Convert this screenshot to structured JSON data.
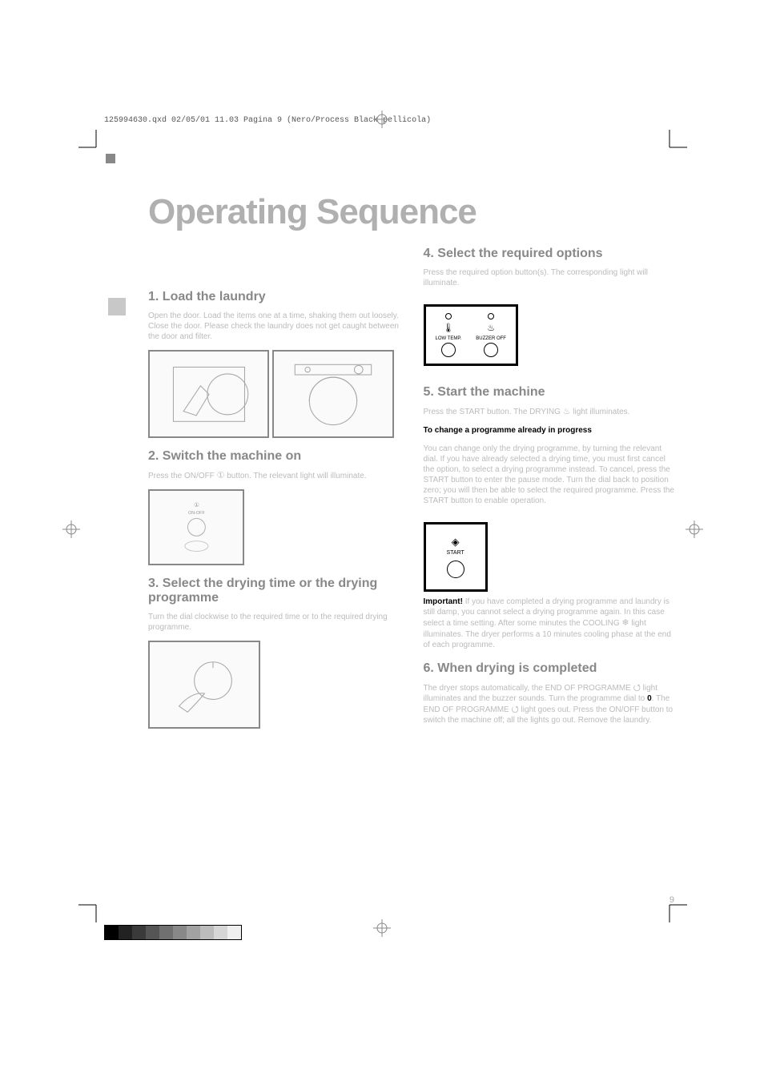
{
  "meta": {
    "header_line": "125994630.qxd  02/05/01  11.03  Pagina  9    (Nero/Process Black pellicola)"
  },
  "title": "Operating Sequence",
  "left": {
    "step1": {
      "heading": "1. Load the laundry",
      "body": "Open the door.\nLoad the items one at a time, shaking them out loosely.\nClose the door. Please check the laundry does not get caught between the door and filter.",
      "img1_ref": "P1108",
      "img2_ref": "P1189"
    },
    "step2": {
      "heading": "2. Switch the machine on",
      "body_prefix": "Press the ON/OFF ",
      "body_suffix": " button. The relevant light will illuminate.",
      "panel_label": "ON-OFF",
      "img_ref": "T0001S"
    },
    "step3": {
      "heading": "3. Select the drying time or the drying programme",
      "body": "Turn the dial clockwise to the required time or to the required drying programme.",
      "img_ref": "M0047S"
    }
  },
  "right": {
    "step4": {
      "heading": "4. Select the required options",
      "body": "Press the required option button(s). The corresponding light will illuminate.",
      "panel": {
        "low_temp_label": "LOW\nTEMP.",
        "buzzer_label": "BUZZER\nOFF"
      }
    },
    "step5": {
      "heading": "5. Start the machine",
      "body1_prefix": "Press the START button. The DRYING ",
      "body1_suffix": " light illuminates.",
      "change_title": "To change a programme already in progress",
      "body2": "You can change only the drying programme, by turning the relevant dial. If you have already selected a drying time, you must first cancel the option, to select a drying programme instead. To cancel, press the START button to enter the pause mode. Turn the dial back to position zero; you will then be able to select the required programme. Press the START button to enable operation.",
      "panel_label": "START",
      "important_label": "Important!",
      "important_body_1": "If you have completed a drying programme and laundry is still damp, you cannot select a drying programme again. In this case select a time setting. After some minutes the COOLING ",
      "important_body_2": " light illuminates. The dryer performs a 10 minutes cooling phase at the end of each programme."
    },
    "step6": {
      "heading": "6. When drying is completed",
      "body_1": "The dryer stops automatically, the END OF PROGRAMME ",
      "body_2": " light illuminates and the buzzer sounds. Turn the programme dial to ",
      "zero": "0",
      "body_3": ". The END OF PROGRAMME ",
      "body_4": " light goes out. Press the ON/OFF button to switch the machine off; all the lights go out. Remove the laundry."
    }
  },
  "page_number": "9",
  "colors": {
    "title_grey": "#b0b0b0",
    "heading_grey": "#888888",
    "body_grey": "#bbbbbb",
    "black": "#000000",
    "gradient": [
      "#000000",
      "#222222",
      "#3a3a3a",
      "#555555",
      "#707070",
      "#888888",
      "#a2a2a2",
      "#bcbcbc",
      "#d6d6d6",
      "#efefef"
    ]
  }
}
